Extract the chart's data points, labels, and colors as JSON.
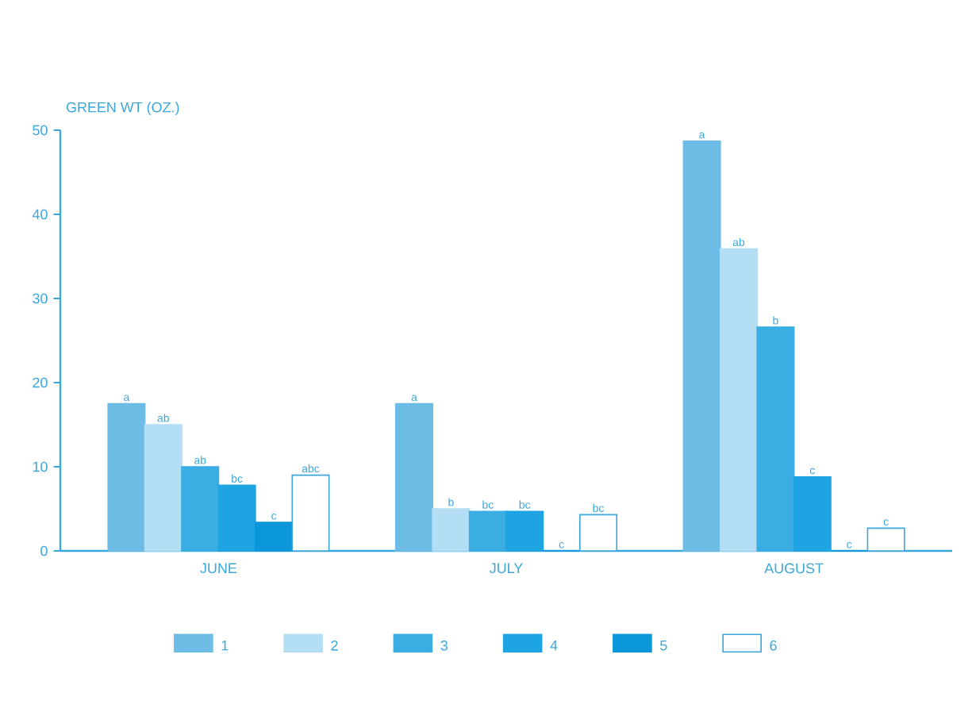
{
  "chart_data": {
    "type": "bar",
    "ylabel": "GREEN WT (OZ.)",
    "categories": [
      "JUNE",
      "JULY",
      "AUGUST"
    ],
    "series": [
      {
        "name": "1",
        "color": "#6cbce6",
        "values": [
          17.5,
          17.5,
          48.7
        ],
        "value_labels": [
          "a",
          "a",
          "a"
        ]
      },
      {
        "name": "2",
        "color": "#b4def3",
        "values": [
          15,
          5,
          35.9
        ],
        "value_labels": [
          "ab",
          "b",
          "ab"
        ]
      },
      {
        "name": "3",
        "color": "#3aaee2",
        "values": [
          10,
          4.7,
          26.6
        ],
        "value_labels": [
          "ab",
          "bc",
          "b"
        ]
      },
      {
        "name": "4",
        "color": "#1ea4e2",
        "values": [
          7.8,
          4.7,
          8.8
        ],
        "value_labels": [
          "bc",
          "bc",
          "c"
        ]
      },
      {
        "name": "5",
        "color": "#0b97d9",
        "values": [
          3.4,
          0,
          0
        ],
        "value_labels": [
          "c",
          "c",
          "c"
        ]
      },
      {
        "name": "6",
        "color": "#ffffff",
        "values": [
          9,
          4.3,
          2.7
        ],
        "value_labels": [
          "abc",
          "bc",
          "c"
        ]
      }
    ],
    "ylim": [
      0,
      50
    ],
    "yticks": [
      0,
      10,
      20,
      30,
      40,
      50
    ],
    "legend": "bottom",
    "grid": false
  }
}
